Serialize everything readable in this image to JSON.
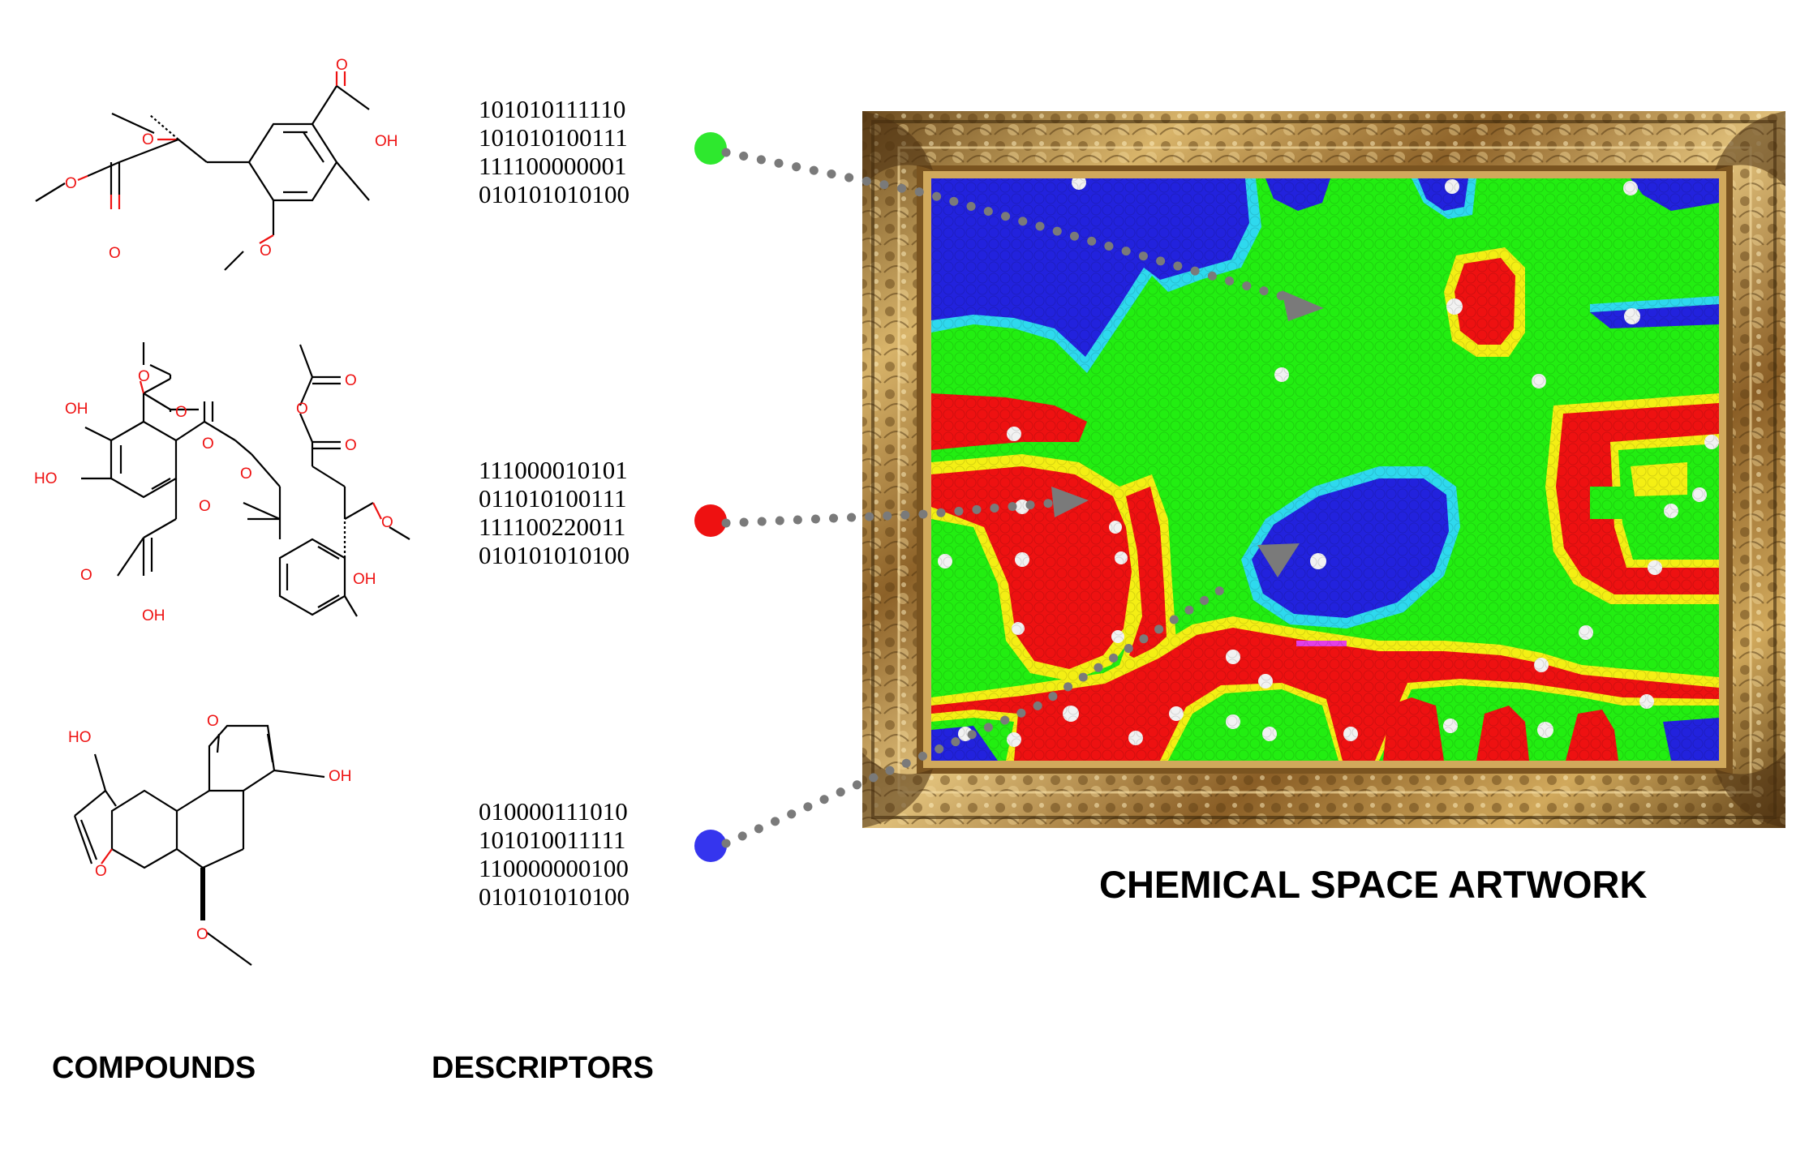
{
  "labels": {
    "compounds": "COMPOUNDS",
    "descriptors": "DESCRIPTORS",
    "artwork": "CHEMICAL SPACE ARTWORK"
  },
  "descriptors": [
    {
      "color": "#2ee82e",
      "bits": [
        "101010111110",
        "101010100111",
        "111100000001",
        "010101010100"
      ]
    },
    {
      "color": "#ee1111",
      "bits": [
        "111000010101",
        "011010100111",
        "111100220011",
        "010101010100"
      ]
    },
    {
      "color": "#3535ee",
      "bits": [
        "010000111010",
        "101010011111",
        "110000000100",
        "010101010100"
      ]
    }
  ],
  "atom_labels": {
    "O": "O",
    "OH": "OH",
    "HO": "HO"
  },
  "palette": {
    "green": "#22ee11",
    "red": "#ee1111",
    "blue": "#2222dd",
    "yellow": "#f4ef14",
    "cyan": "#2ed9ee",
    "white": "#f2f2f2",
    "arrow": "#7a7a7a",
    "frame_gold": "#b8893c"
  }
}
